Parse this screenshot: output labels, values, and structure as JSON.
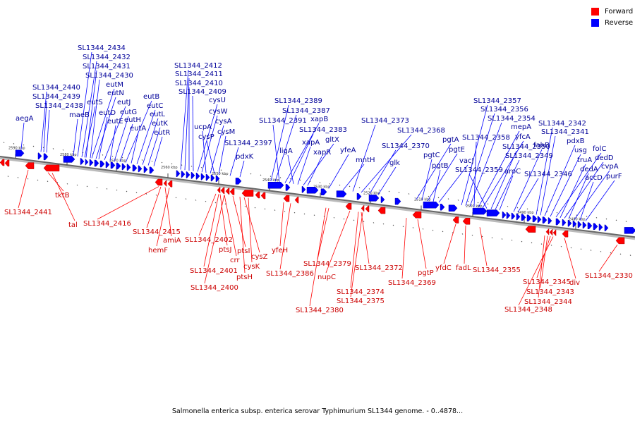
{
  "caption": "Salmonella enterica subsp. enterica serovar Typhimurium SL1344 genome. - 0..4878...",
  "legend": {
    "forward_label": "Forward",
    "reverse_label": "Reverse",
    "forward_color": "#ff0000",
    "reverse_color": "#0000ff"
  },
  "colors": {
    "axis": "#666666",
    "forward_text": "#cc0000",
    "reverse_text": "#000099"
  },
  "ticks": [
    "2590 kbp",
    "2580 kbp",
    "2570 kbp",
    "2560 kbp",
    "2550 kbp",
    "2540 kbp",
    "2530 kbp",
    "2520 kbp",
    "2510 kbp",
    "2500 kbp",
    "2490 kbp",
    "2480 kbp"
  ],
  "reverse_labels": [
    "aegA",
    "SL1344_2440",
    "SL1344_2439",
    "SL1344_2438",
    "maeB",
    "SL1344_2434",
    "SL1344_2432",
    "SL1344_2431",
    "SL1344_2430",
    "eutS",
    "eutM",
    "eutN",
    "eutD",
    "eutJ",
    "eutE",
    "eutG",
    "eutH",
    "eutB",
    "eutA",
    "eutC",
    "eutL",
    "eutK",
    "eutR",
    "SL1344_2412",
    "SL1344_2411",
    "SL1344_2410",
    "SL1344_2409",
    "cysU",
    "cysW",
    "ucpA",
    "cysA",
    "cysP",
    "cysM",
    "SL1344_2397",
    "pdxK",
    "SL1344_2389",
    "SL1344_2387",
    "SL1344_2391",
    "xapB",
    "SL1344_2383",
    "ligA",
    "xapA",
    "gltX",
    "xapR",
    "yfeA",
    "mntH",
    "SL1344_2373",
    "SL1344_2368",
    "SL1344_2370",
    "glk",
    "pgtA",
    "pgtC",
    "pgtE",
    "pgtB",
    "vacJ",
    "SL1344_2357",
    "SL1344_2356",
    "SL1344_2354",
    "SL1344_2358",
    "mepA",
    "yfcA",
    "SL1344_2359",
    "SL1344_2350",
    "SL1344_2349",
    "aroC",
    "fabB",
    "SL1344_2346",
    "SL1344_2342",
    "SL1344_2341",
    "pdxB",
    "usg",
    "folC",
    "truA",
    "dedD",
    "dedA",
    "cvpA",
    "accD",
    "purF"
  ],
  "forward_labels": [
    "SL1344_2441",
    "tktB",
    "tal",
    "SL1344_2416",
    "SL1344_2415",
    "amiA",
    "hemF",
    "SL1344_2402",
    "ptsJ",
    "crr",
    "ptsI",
    "cysZ",
    "cysK",
    "ptsH",
    "SL1344_2401",
    "SL1344_2400",
    "yfeH",
    "SL1344_2386",
    "SL1344_2379",
    "nupC",
    "SL1344_2372",
    "SL1344_2374",
    "SL1344_2375",
    "SL1344_2380",
    "SL1344_2369",
    "pgtP",
    "yfdC",
    "fadL",
    "SL1344_2355",
    "SL1344_2345",
    "SL1344_2343",
    "SL1344_2344",
    "SL1344_2348",
    "div",
    "SL1344_2330"
  ]
}
